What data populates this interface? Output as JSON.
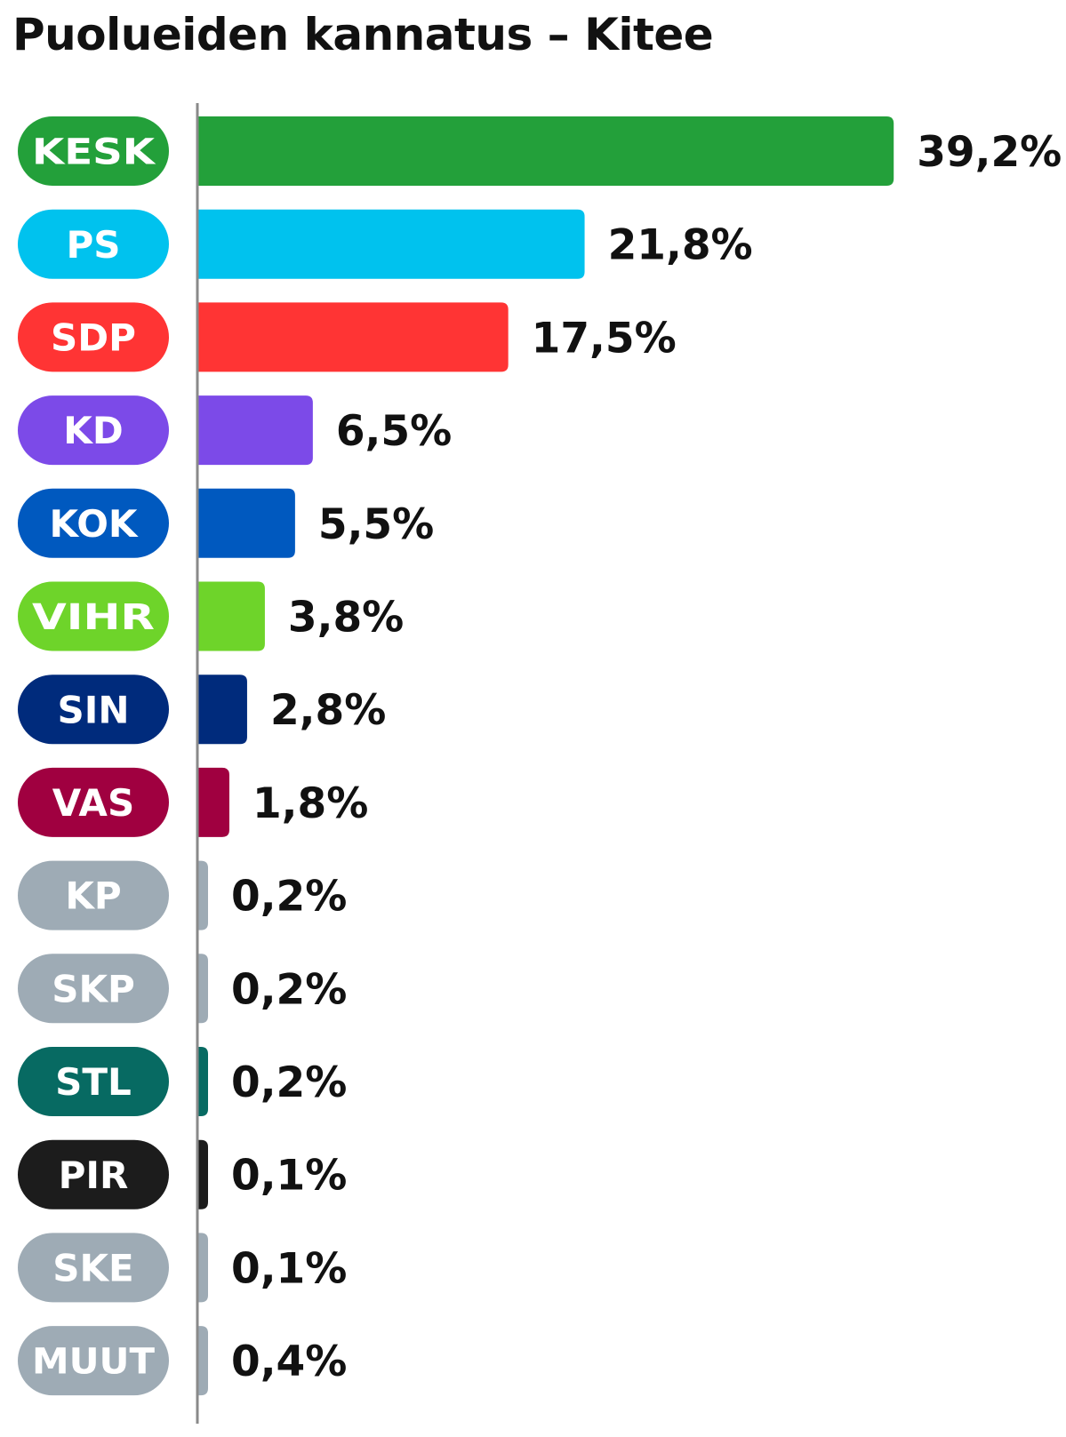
{
  "chart_data": {
    "type": "bar",
    "orientation": "horizontal",
    "title": "Puolueiden kannatus – Kitee",
    "categories": [
      "KESK",
      "PS",
      "SDP",
      "KD",
      "KOK",
      "VIHR",
      "SIN",
      "VAS",
      "KP",
      "SKP",
      "STL",
      "PIR",
      "SKE",
      "MUUT"
    ],
    "values": [
      39.2,
      21.8,
      17.5,
      6.5,
      5.5,
      3.8,
      2.8,
      1.8,
      0.2,
      0.2,
      0.2,
      0.1,
      0.1,
      0.4
    ],
    "value_labels": [
      "39,2%",
      "21,8%",
      "17,5%",
      "6,5%",
      "5,5%",
      "3,8%",
      "2,8%",
      "1,8%",
      "0,2%",
      "0,2%",
      "0,2%",
      "0,1%",
      "0,1%",
      "0,4%"
    ],
    "colors": [
      "#23a03a",
      "#00c2ee",
      "#ff3434",
      "#7c4ae8",
      "#0059bf",
      "#6ed42a",
      "#002b7c",
      "#a00040",
      "#9eabb5",
      "#9eabb5",
      "#076a62",
      "#1c1c1c",
      "#9eabb5",
      "#9eabb5"
    ],
    "unit": "%",
    "grid": false,
    "legend": "none"
  }
}
